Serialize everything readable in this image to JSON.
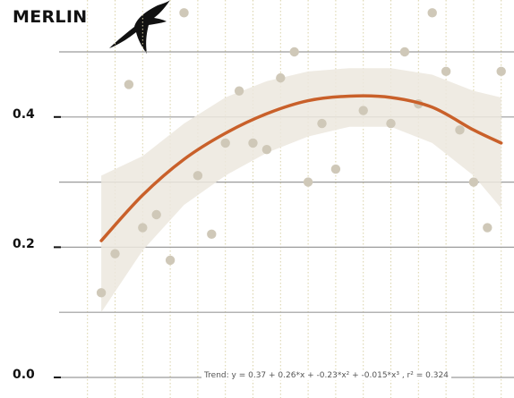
{
  "chart_data": {
    "type": "scatter",
    "title": "MERLIN",
    "xlabel": "",
    "ylabel": "",
    "xlim": [
      1994.5,
      2024.5
    ],
    "ylim": [
      0,
      0.5
    ],
    "y_ticks": [
      {
        "value": 0.0,
        "label": "0.0"
      },
      {
        "value": 0.2,
        "label": "0.2"
      },
      {
        "value": 0.4,
        "label": "0.4"
      }
    ],
    "points": [
      {
        "x": 1996,
        "y": 0.13
      },
      {
        "x": 1997,
        "y": 0.19
      },
      {
        "x": 1998,
        "y": 0.45
      },
      {
        "x": 1999,
        "y": 0.23
      },
      {
        "x": 2000,
        "y": 0.25
      },
      {
        "x": 2001,
        "y": 0.18
      },
      {
        "x": 2002,
        "y": 0.56
      },
      {
        "x": 2003,
        "y": 0.31
      },
      {
        "x": 2004,
        "y": 0.22
      },
      {
        "x": 2005,
        "y": 0.36
      },
      {
        "x": 2006,
        "y": 0.44
      },
      {
        "x": 2007,
        "y": 0.36
      },
      {
        "x": 2008,
        "y": 0.35
      },
      {
        "x": 2009,
        "y": 0.46
      },
      {
        "x": 2010,
        "y": 0.5
      },
      {
        "x": 2011,
        "y": 0.3
      },
      {
        "x": 2012,
        "y": 0.39
      },
      {
        "x": 2013,
        "y": 0.32
      },
      {
        "x": 2015,
        "y": 0.41
      },
      {
        "x": 2017,
        "y": 0.39
      },
      {
        "x": 2018,
        "y": 0.5
      },
      {
        "x": 2019,
        "y": 0.42
      },
      {
        "x": 2020,
        "y": 0.56
      },
      {
        "x": 2021,
        "y": 0.47
      },
      {
        "x": 2022,
        "y": 0.38
      },
      {
        "x": 2023,
        "y": 0.3
      },
      {
        "x": 2024,
        "y": 0.23
      },
      {
        "x": 2025,
        "y": 0.47
      }
    ],
    "trend": {
      "x": [
        1996,
        1999,
        2002,
        2005,
        2008,
        2011,
        2014,
        2017,
        2020,
        2023,
        2025
      ],
      "y": [
        0.21,
        0.28,
        0.335,
        0.375,
        0.405,
        0.425,
        0.432,
        0.43,
        0.415,
        0.38,
        0.36
      ],
      "ci_upper": [
        0.31,
        0.34,
        0.39,
        0.43,
        0.455,
        0.47,
        0.475,
        0.475,
        0.465,
        0.44,
        0.43
      ],
      "ci_lower": [
        0.1,
        0.195,
        0.265,
        0.31,
        0.345,
        0.37,
        0.385,
        0.385,
        0.36,
        0.31,
        0.26
      ],
      "equation_label": "Trend: y = 0.37 + 0.26*x + -0.23*x² + -0.015*x³ , r² = 0.324"
    },
    "grid": true,
    "colors": {
      "points": "#cfc8b8",
      "trend": "#c9602a",
      "ci_band": "#ece7de",
      "hgrid": "#9a9a9a",
      "vgrid": "#d9d2a8",
      "text": "#111111"
    },
    "icon": "bird-silhouette-icon"
  }
}
